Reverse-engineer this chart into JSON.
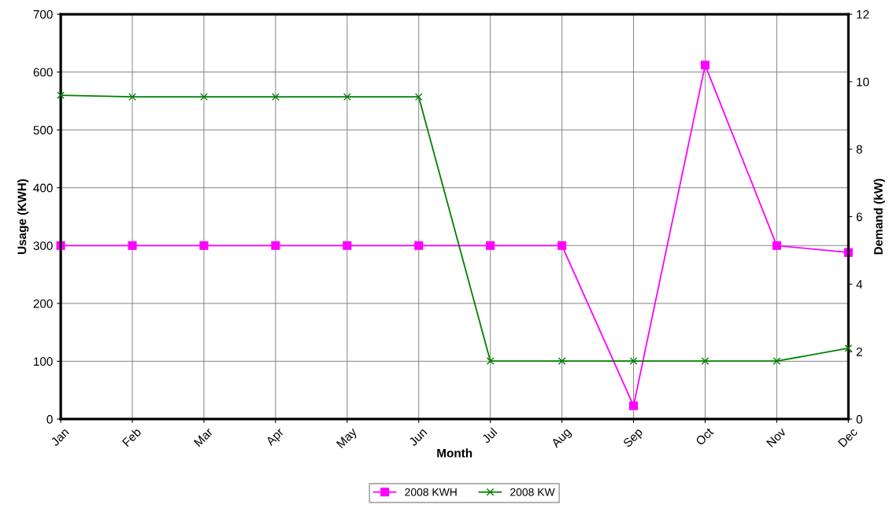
{
  "chart_data": {
    "type": "line",
    "xlabel": "Month",
    "ylabel": "Usage (KWH)",
    "y2label": "Demand (kW)",
    "categories": [
      "Jan",
      "Feb",
      "Mar",
      "Apr",
      "May",
      "Jun",
      "Jul",
      "Aug",
      "Sep",
      "Oct",
      "Nov",
      "Dec"
    ],
    "series": [
      {
        "name": "2008 KWH",
        "color": "#ff00ff",
        "marker": "square",
        "values": [
          300,
          300,
          300,
          300,
          300,
          300,
          300,
          300,
          23,
          612,
          300,
          288
        ]
      },
      {
        "name": "2008 KW",
        "color": "#008000",
        "marker": "cross",
        "axis": "y2",
        "values": [
          9.6,
          9.55,
          9.55,
          9.55,
          9.55,
          9.55,
          1.72,
          1.72,
          1.72,
          1.72,
          1.72,
          2.1
        ]
      }
    ],
    "ylim": [
      0,
      700
    ],
    "yticks": [
      0,
      100,
      200,
      300,
      400,
      500,
      600,
      700
    ],
    "y2lim": [
      0,
      12
    ],
    "y2ticks": [
      0,
      2,
      4,
      6,
      8,
      10,
      12
    ],
    "grid": true,
    "legend": "bottom"
  }
}
